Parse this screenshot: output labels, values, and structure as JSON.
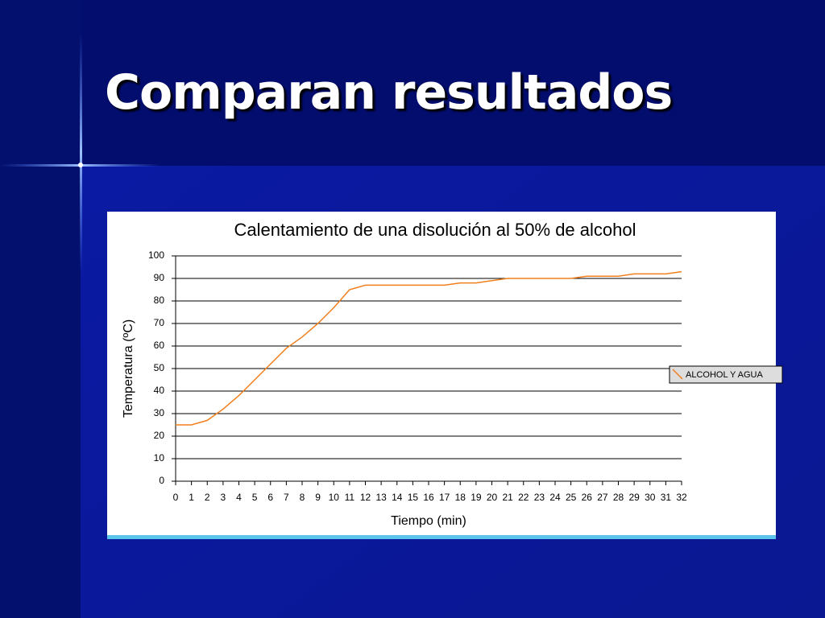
{
  "slide_title": "Comparan resultados",
  "chart_data": {
    "type": "line",
    "title": "Calentamiento de una disolución al 50% de alcohol",
    "x_label": "Tiempo (min)",
    "y_label": "Temperatura (ºC)",
    "x": [
      0,
      1,
      2,
      3,
      4,
      5,
      6,
      7,
      8,
      9,
      10,
      11,
      12,
      13,
      14,
      15,
      16,
      17,
      18,
      19,
      20,
      21,
      22,
      23,
      24,
      25,
      26,
      27,
      28,
      29,
      30,
      31,
      32
    ],
    "series": [
      {
        "name": "ALCOHOL Y AGUA",
        "color": "#f07f1e",
        "values": [
          25,
          25,
          27,
          32,
          38,
          45,
          52,
          59,
          64,
          70,
          77,
          85,
          87,
          87,
          87,
          87,
          87,
          87,
          88,
          88,
          89,
          90,
          90,
          90,
          90,
          90,
          91,
          91,
          91,
          92,
          92,
          92,
          93
        ]
      }
    ],
    "xlim": [
      0,
      32
    ],
    "xticks": [
      0,
      1,
      2,
      3,
      4,
      5,
      6,
      7,
      8,
      9,
      10,
      11,
      12,
      13,
      14,
      15,
      16,
      17,
      18,
      19,
      20,
      21,
      22,
      23,
      24,
      25,
      26,
      27,
      28,
      29,
      30,
      31,
      32
    ],
    "ylim": [
      0,
      100
    ],
    "yticks": [
      0,
      10,
      20,
      30,
      40,
      50,
      60,
      70,
      80,
      90,
      100
    ],
    "grid": true,
    "legend": "right"
  }
}
